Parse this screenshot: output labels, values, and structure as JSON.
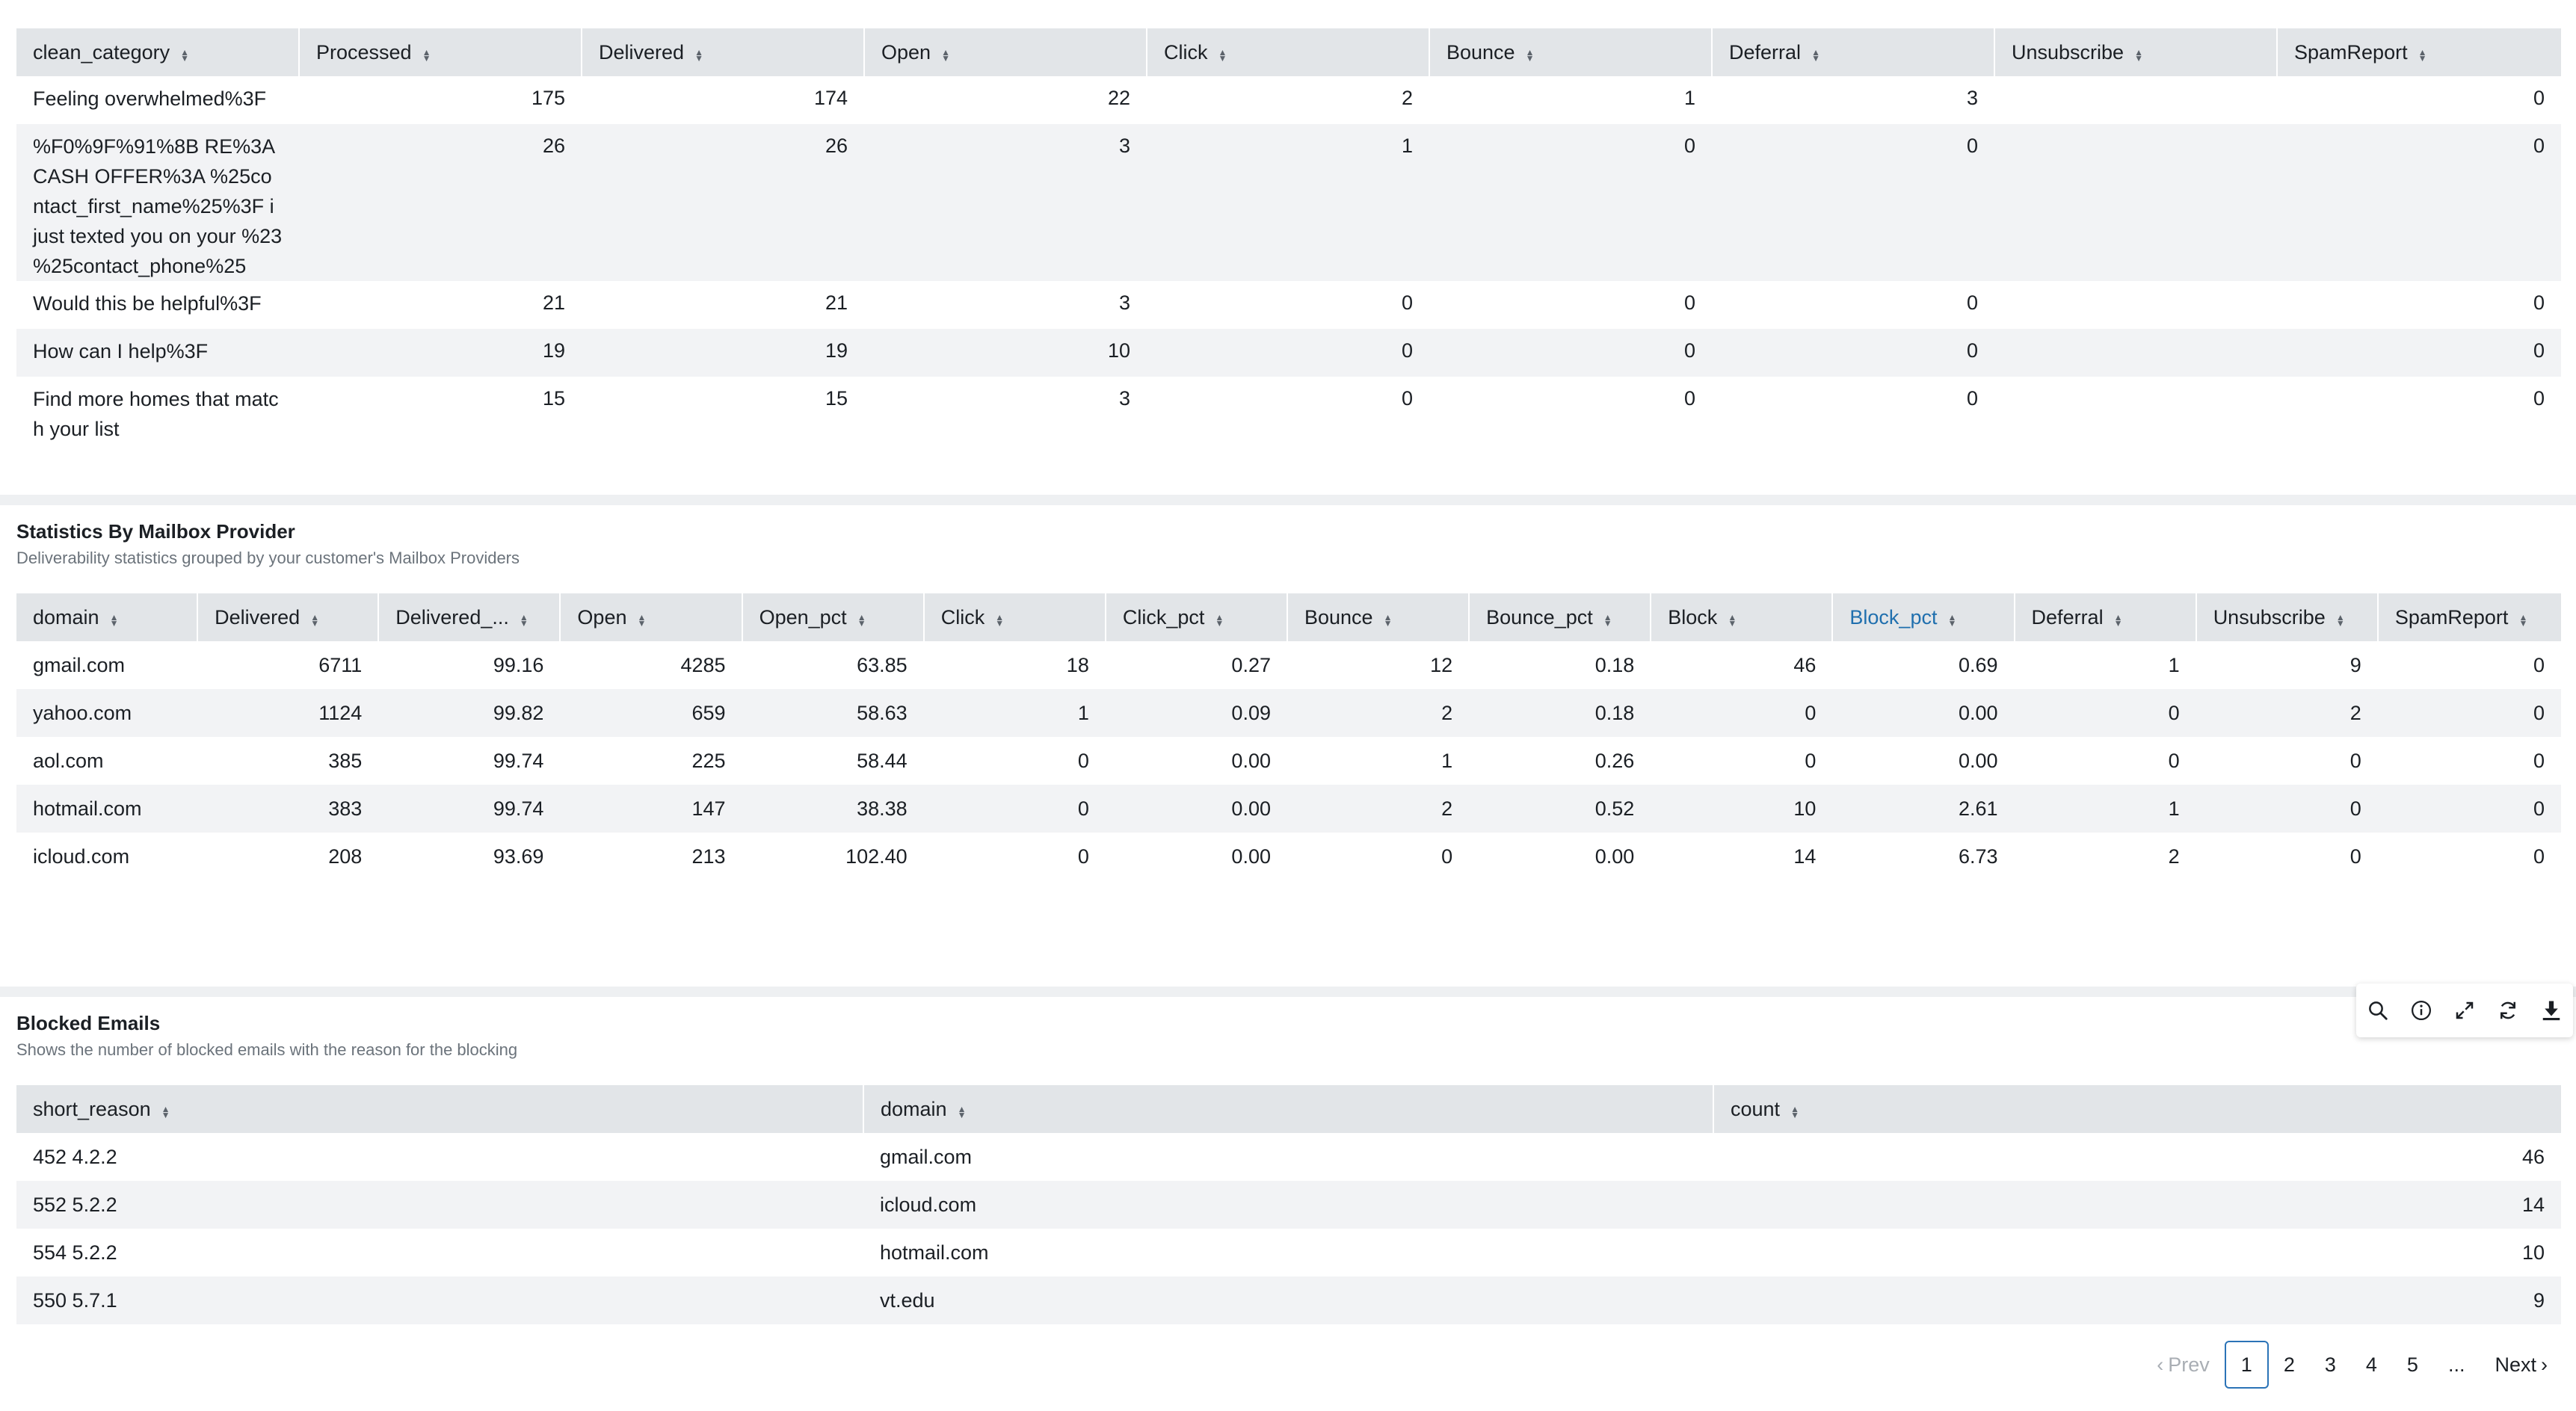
{
  "categories_table": {
    "columns": [
      "clean_category",
      "Processed",
      "Delivered",
      "Open",
      "Click",
      "Bounce",
      "Deferral",
      "Unsubscribe",
      "SpamReport"
    ],
    "rows": [
      [
        "Feeling overwhelmed%3F",
        "175",
        "174",
        "22",
        "2",
        "1",
        "3",
        "",
        "0"
      ],
      [
        "%F0%9F%91%8B  RE%3A CASH OFFER%3A %25contact_first_name%25%3F i just texted you on your %23 %25contact_phone%25",
        "26",
        "26",
        "3",
        "1",
        "0",
        "0",
        "",
        "0"
      ],
      [
        "Would this be helpful%3F",
        "21",
        "21",
        "3",
        "0",
        "0",
        "0",
        "",
        "0"
      ],
      [
        "How can I help%3F",
        "19",
        "19",
        "10",
        "0",
        "0",
        "0",
        "",
        "0"
      ],
      [
        "Find more homes that match your list",
        "15",
        "15",
        "3",
        "0",
        "0",
        "0",
        "",
        "0"
      ]
    ]
  },
  "provider_panel": {
    "title": "Statistics By Mailbox Provider",
    "subtitle": "Deliverability statistics grouped by your customer's Mailbox Providers",
    "columns": [
      "domain",
      "Delivered",
      "Delivered_...",
      "Open",
      "Open_pct",
      "Click",
      "Click_pct",
      "Bounce",
      "Bounce_pct",
      "Block",
      "Block_pct",
      "Deferral",
      "Unsubscribe",
      "SpamReport"
    ],
    "active_column": "Block_pct",
    "rows": [
      [
        "gmail.com",
        "6711",
        "99.16",
        "4285",
        "63.85",
        "18",
        "0.27",
        "12",
        "0.18",
        "46",
        "0.69",
        "1",
        "9",
        "0"
      ],
      [
        "yahoo.com",
        "1124",
        "99.82",
        "659",
        "58.63",
        "1",
        "0.09",
        "2",
        "0.18",
        "0",
        "0.00",
        "0",
        "2",
        "0"
      ],
      [
        "aol.com",
        "385",
        "99.74",
        "225",
        "58.44",
        "0",
        "0.00",
        "1",
        "0.26",
        "0",
        "0.00",
        "0",
        "0",
        "0"
      ],
      [
        "hotmail.com",
        "383",
        "99.74",
        "147",
        "38.38",
        "0",
        "0.00",
        "2",
        "0.52",
        "10",
        "2.61",
        "1",
        "0",
        "0"
      ],
      [
        "icloud.com",
        "208",
        "93.69",
        "213",
        "102.40",
        "0",
        "0.00",
        "0",
        "0.00",
        "14",
        "6.73",
        "2",
        "0",
        "0"
      ]
    ]
  },
  "blocked_panel": {
    "title": "Blocked Emails",
    "subtitle": "Shows the number of blocked emails with the reason for the blocking",
    "columns": [
      "short_reason",
      "domain",
      "count"
    ],
    "rows": [
      [
        "452 4.2.2",
        "gmail.com",
        "46"
      ],
      [
        "552 5.2.2",
        "icloud.com",
        "14"
      ],
      [
        "554 5.2.2",
        "hotmail.com",
        "10"
      ],
      [
        "550 5.7.1",
        "vt.edu",
        "9"
      ]
    ]
  },
  "pagination": {
    "prev_label": "Prev",
    "next_label": "Next",
    "pages": [
      "1",
      "2",
      "3",
      "4",
      "5",
      "..."
    ],
    "current": "1"
  },
  "toolbar": {
    "icons": [
      "search-icon",
      "info-icon",
      "expand-icon",
      "refresh-icon",
      "download-icon"
    ]
  },
  "colors": {
    "header_bg": "#e2e5e8",
    "stripe_bg": "#f2f3f5",
    "active_header": "#1f6fae",
    "page_bg": "#eef0f2"
  }
}
